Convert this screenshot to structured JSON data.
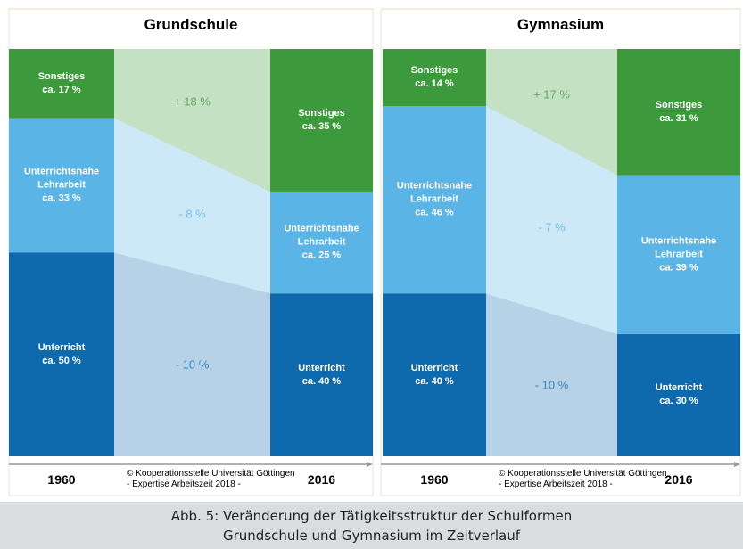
{
  "chart_data": [
    {
      "type": "stacked-transition",
      "title": "Grundschule",
      "categories": [
        "1960",
        "2016"
      ],
      "ylim": [
        0,
        100
      ],
      "source": [
        "© Kooperationsstelle Universität Göttingen",
        "- Expertise Arbeitszeit 2018 -"
      ],
      "series": [
        {
          "name": "Unterricht",
          "color": "#0f6aad",
          "values": [
            50,
            40
          ],
          "value_labels": [
            "ca. 50 %",
            "ca. 40 %"
          ],
          "change": {
            "value": -10,
            "label": "- 10 %"
          }
        },
        {
          "name": "Unterrichtsnahe Lehrarbeit",
          "color": "#5ab4e5",
          "values": [
            33,
            25
          ],
          "value_labels": [
            "ca. 33 %",
            "ca. 25 %"
          ],
          "change": {
            "value": -8,
            "label": "- 8 %"
          }
        },
        {
          "name": "Sonstiges",
          "color": "#3d9a3c",
          "values": [
            17,
            35
          ],
          "value_labels": [
            "ca. 17 %",
            "ca. 35 %"
          ],
          "change": {
            "value": 18,
            "label": "+ 18 %"
          }
        }
      ]
    },
    {
      "type": "stacked-transition",
      "title": "Gymnasium",
      "categories": [
        "1960",
        "2016"
      ],
      "ylim": [
        0,
        100
      ],
      "source": [
        "© Kooperationsstelle Universität Göttingen",
        "- Expertise Arbeitszeit 2018 -"
      ],
      "series": [
        {
          "name": "Unterricht",
          "color": "#0f6aad",
          "values": [
            40,
            30
          ],
          "value_labels": [
            "ca. 40 %",
            "ca. 30 %"
          ],
          "change": {
            "value": -10,
            "label": "- 10 %"
          }
        },
        {
          "name": "Unterrichtsnahe Lehrarbeit",
          "color": "#5ab4e5",
          "values": [
            46,
            39
          ],
          "value_labels": [
            "ca. 46 %",
            "ca. 39 %"
          ],
          "change": {
            "value": -7,
            "label": "- 7 %"
          }
        },
        {
          "name": "Sonstiges",
          "color": "#3d9a3c",
          "values": [
            14,
            31
          ],
          "value_labels": [
            "ca. 14 %",
            "ca. 31 %"
          ],
          "change": {
            "value": 17,
            "label": "+ 17 %"
          }
        }
      ]
    }
  ],
  "caption": [
    "Abb. 5: Veränderung der Tätigkeitsstruktur der Schulformen",
    "Grundschule und Gymnasium im Zeitverlauf"
  ]
}
